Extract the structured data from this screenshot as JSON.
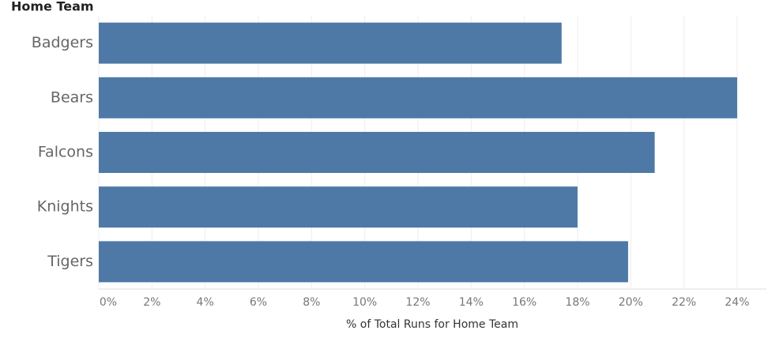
{
  "chart_data": {
    "type": "bar",
    "orientation": "horizontal",
    "y_axis_label": "Home Team",
    "x_axis_label": "% of Total Runs for Home Team",
    "categories": [
      "Badgers",
      "Bears",
      "Falcons",
      "Knights",
      "Tigers"
    ],
    "values": [
      17.4,
      24.0,
      20.9,
      18.0,
      19.9
    ],
    "color": "#4e79a7",
    "xlim": [
      0,
      25.1
    ],
    "xticks": [
      {
        "value": 0,
        "label": "0%"
      },
      {
        "value": 2,
        "label": "2%"
      },
      {
        "value": 4,
        "label": "4%"
      },
      {
        "value": 6,
        "label": "6%"
      },
      {
        "value": 8,
        "label": "8%"
      },
      {
        "value": 10,
        "label": "10%"
      },
      {
        "value": 12,
        "label": "12%"
      },
      {
        "value": 14,
        "label": "14%"
      },
      {
        "value": 16,
        "label": "16%"
      },
      {
        "value": 18,
        "label": "18%"
      },
      {
        "value": 20,
        "label": "20%"
      },
      {
        "value": 22,
        "label": "22%"
      },
      {
        "value": 24,
        "label": "24%"
      }
    ],
    "grid": true
  }
}
